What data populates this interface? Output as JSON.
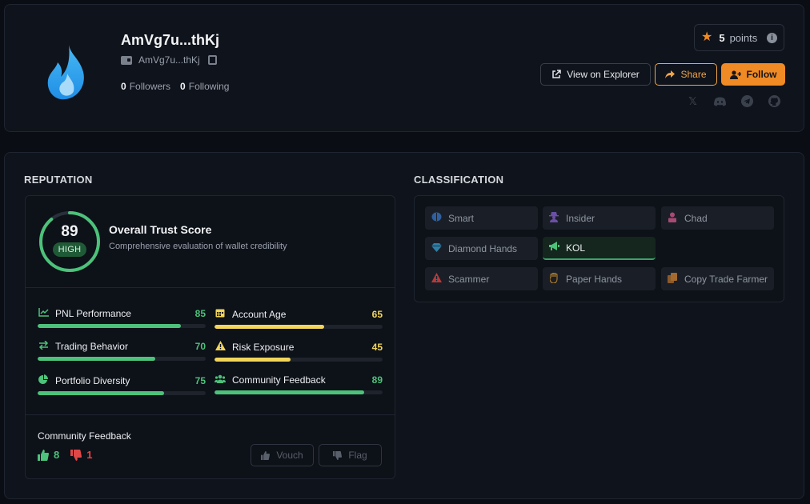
{
  "profile": {
    "name": "AmVg7u...thKj",
    "address": "AmVg7u...thKj",
    "followers_count": "0",
    "followers_label": "Followers",
    "following_count": "0",
    "following_label": "Following",
    "points_value": "5",
    "points_label": "points",
    "buttons": {
      "explorer": "View on Explorer",
      "share": "Share",
      "follow": "Follow"
    },
    "socials": [
      "x-icon",
      "discord-icon",
      "telegram-icon",
      "github-icon"
    ]
  },
  "reputation": {
    "title": "REPUTATION",
    "score": "89",
    "score_fraction": 0.89,
    "level": "HIGH",
    "trust_title": "Overall Trust Score",
    "trust_subtitle": "Comprehensive evaluation of wallet credibility",
    "metrics": [
      {
        "label": "PNL Performance",
        "value": "85",
        "fraction": 0.85,
        "color": "#4cc27a",
        "icon": "chart-line-icon"
      },
      {
        "label": "Account Age",
        "value": "65",
        "fraction": 0.65,
        "color": "#f2d55a",
        "icon": "calendar-icon"
      },
      {
        "label": "Trading Behavior",
        "value": "70",
        "fraction": 0.7,
        "color": "#4cc27a",
        "icon": "exchange-icon"
      },
      {
        "label": "Risk Exposure",
        "value": "45",
        "fraction": 0.45,
        "color": "#f2d55a",
        "icon": "warning-icon"
      },
      {
        "label": "Portfolio Diversity",
        "value": "75",
        "fraction": 0.75,
        "color": "#4cc27a",
        "icon": "pie-chart-icon"
      },
      {
        "label": "Community Feedback",
        "value": "89",
        "fraction": 0.89,
        "color": "#4cc27a",
        "icon": "users-icon"
      }
    ],
    "community": {
      "title": "Community Feedback",
      "up_count": "8",
      "down_count": "1",
      "vouch_label": "Vouch",
      "flag_label": "Flag"
    }
  },
  "classification": {
    "title": "CLASSIFICATION",
    "tags": [
      {
        "label": "Smart",
        "icon": "brain-icon",
        "active": false
      },
      {
        "label": "Insider",
        "icon": "user-secret-icon",
        "active": false
      },
      {
        "label": "Chad",
        "icon": "user-icon",
        "active": false
      },
      {
        "label": "Diamond Hands",
        "icon": "diamond-icon",
        "active": false
      },
      {
        "label": "KOL",
        "icon": "megaphone-icon",
        "active": true
      },
      {
        "label": "Scammer",
        "icon": "warning-icon",
        "active": false
      },
      {
        "label": "Paper Hands",
        "icon": "hand-icon",
        "active": false
      },
      {
        "label": "Copy Trade Farmer",
        "icon": "copy-icon",
        "active": false
      }
    ]
  },
  "colors": {
    "accent_orange": "#f08a24",
    "green": "#4cc27a",
    "yellow": "#f2d55a",
    "red": "#e04848",
    "background": "#0a0d13"
  }
}
